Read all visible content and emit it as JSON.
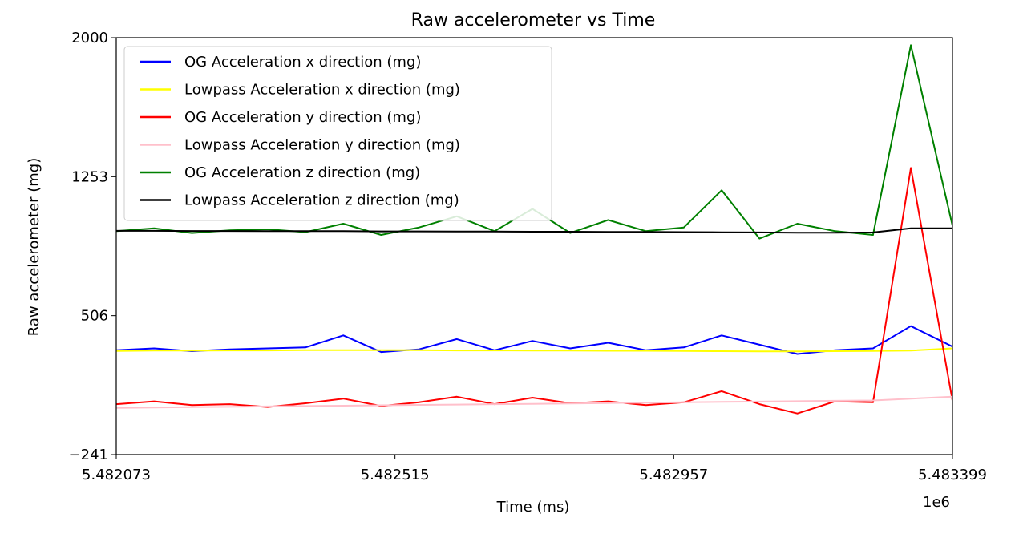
{
  "chart_data": {
    "type": "line",
    "title": "Raw accelerometer vs Time",
    "xlabel": "Time (ms)",
    "ylabel": "Raw accelerometer (mg)",
    "x_offset_label": "1e6",
    "xlim": [
      5.482073,
      5.483399
    ],
    "ylim": [
      -241,
      2000
    ],
    "x_ticks": [
      5.482073,
      5.482515,
      5.482957,
      5.483399
    ],
    "x_tick_labels": [
      "5.482073",
      "5.482515",
      "5.482957",
      "5.483399"
    ],
    "y_ticks": [
      -241,
      506,
      1253,
      2000
    ],
    "y_tick_labels": [
      "−241",
      "506",
      "1253",
      "2000"
    ],
    "grid": false,
    "legend_position": "top-left",
    "x": [
      5.482073,
      5.482133,
      5.482193,
      5.482253,
      5.482313,
      5.482373,
      5.482433,
      5.482493,
      5.482553,
      5.482613,
      5.482673,
      5.482733,
      5.482793,
      5.482853,
      5.482913,
      5.482973,
      5.483033,
      5.483093,
      5.483153,
      5.483213,
      5.483273,
      5.483333,
      5.483399
    ],
    "series": [
      {
        "name": "OG Acceleration x direction (mg)",
        "color": "#0000ff",
        "values": [
          320,
          330,
          315,
          325,
          330,
          335,
          400,
          310,
          325,
          380,
          320,
          370,
          330,
          360,
          320,
          335,
          400,
          350,
          300,
          320,
          330,
          450,
          340
        ]
      },
      {
        "name": "Lowpass Acceleration x direction (mg)",
        "color": "#ffff00",
        "values": [
          316,
          318,
          318,
          319,
          319,
          320,
          320,
          320,
          320,
          319,
          319,
          318,
          318,
          317,
          317,
          316,
          315,
          314,
          314,
          315,
          316,
          318,
          330
        ]
      },
      {
        "name": "OG Acceleration y direction (mg)",
        "color": "#ff0000",
        "values": [
          30,
          45,
          25,
          30,
          15,
          35,
          60,
          20,
          40,
          70,
          30,
          65,
          35,
          45,
          25,
          40,
          100,
          30,
          -20,
          45,
          40,
          1300,
          50
        ]
      },
      {
        "name": "Lowpass Acceleration y direction (mg)",
        "color": "#ffc0cb",
        "values": [
          10,
          12,
          14,
          16,
          18,
          20,
          22,
          24,
          26,
          28,
          30,
          32,
          34,
          36,
          38,
          40,
          42,
          44,
          46,
          48,
          50,
          60,
          70
        ]
      },
      {
        "name": "OG Acceleration z direction (mg)",
        "color": "#008000",
        "values": [
          960,
          975,
          950,
          965,
          970,
          955,
          1000,
          940,
          980,
          1040,
          960,
          1080,
          950,
          1020,
          960,
          980,
          1180,
          920,
          1000,
          960,
          940,
          1960,
          990
        ]
      },
      {
        "name": "Lowpass Acceleration z direction (mg)",
        "color": "#000000",
        "values": [
          962,
          962,
          961,
          961,
          960,
          960,
          960,
          959,
          959,
          958,
          958,
          957,
          957,
          956,
          956,
          955,
          954,
          953,
          952,
          952,
          953,
          975,
          975
        ]
      }
    ]
  }
}
